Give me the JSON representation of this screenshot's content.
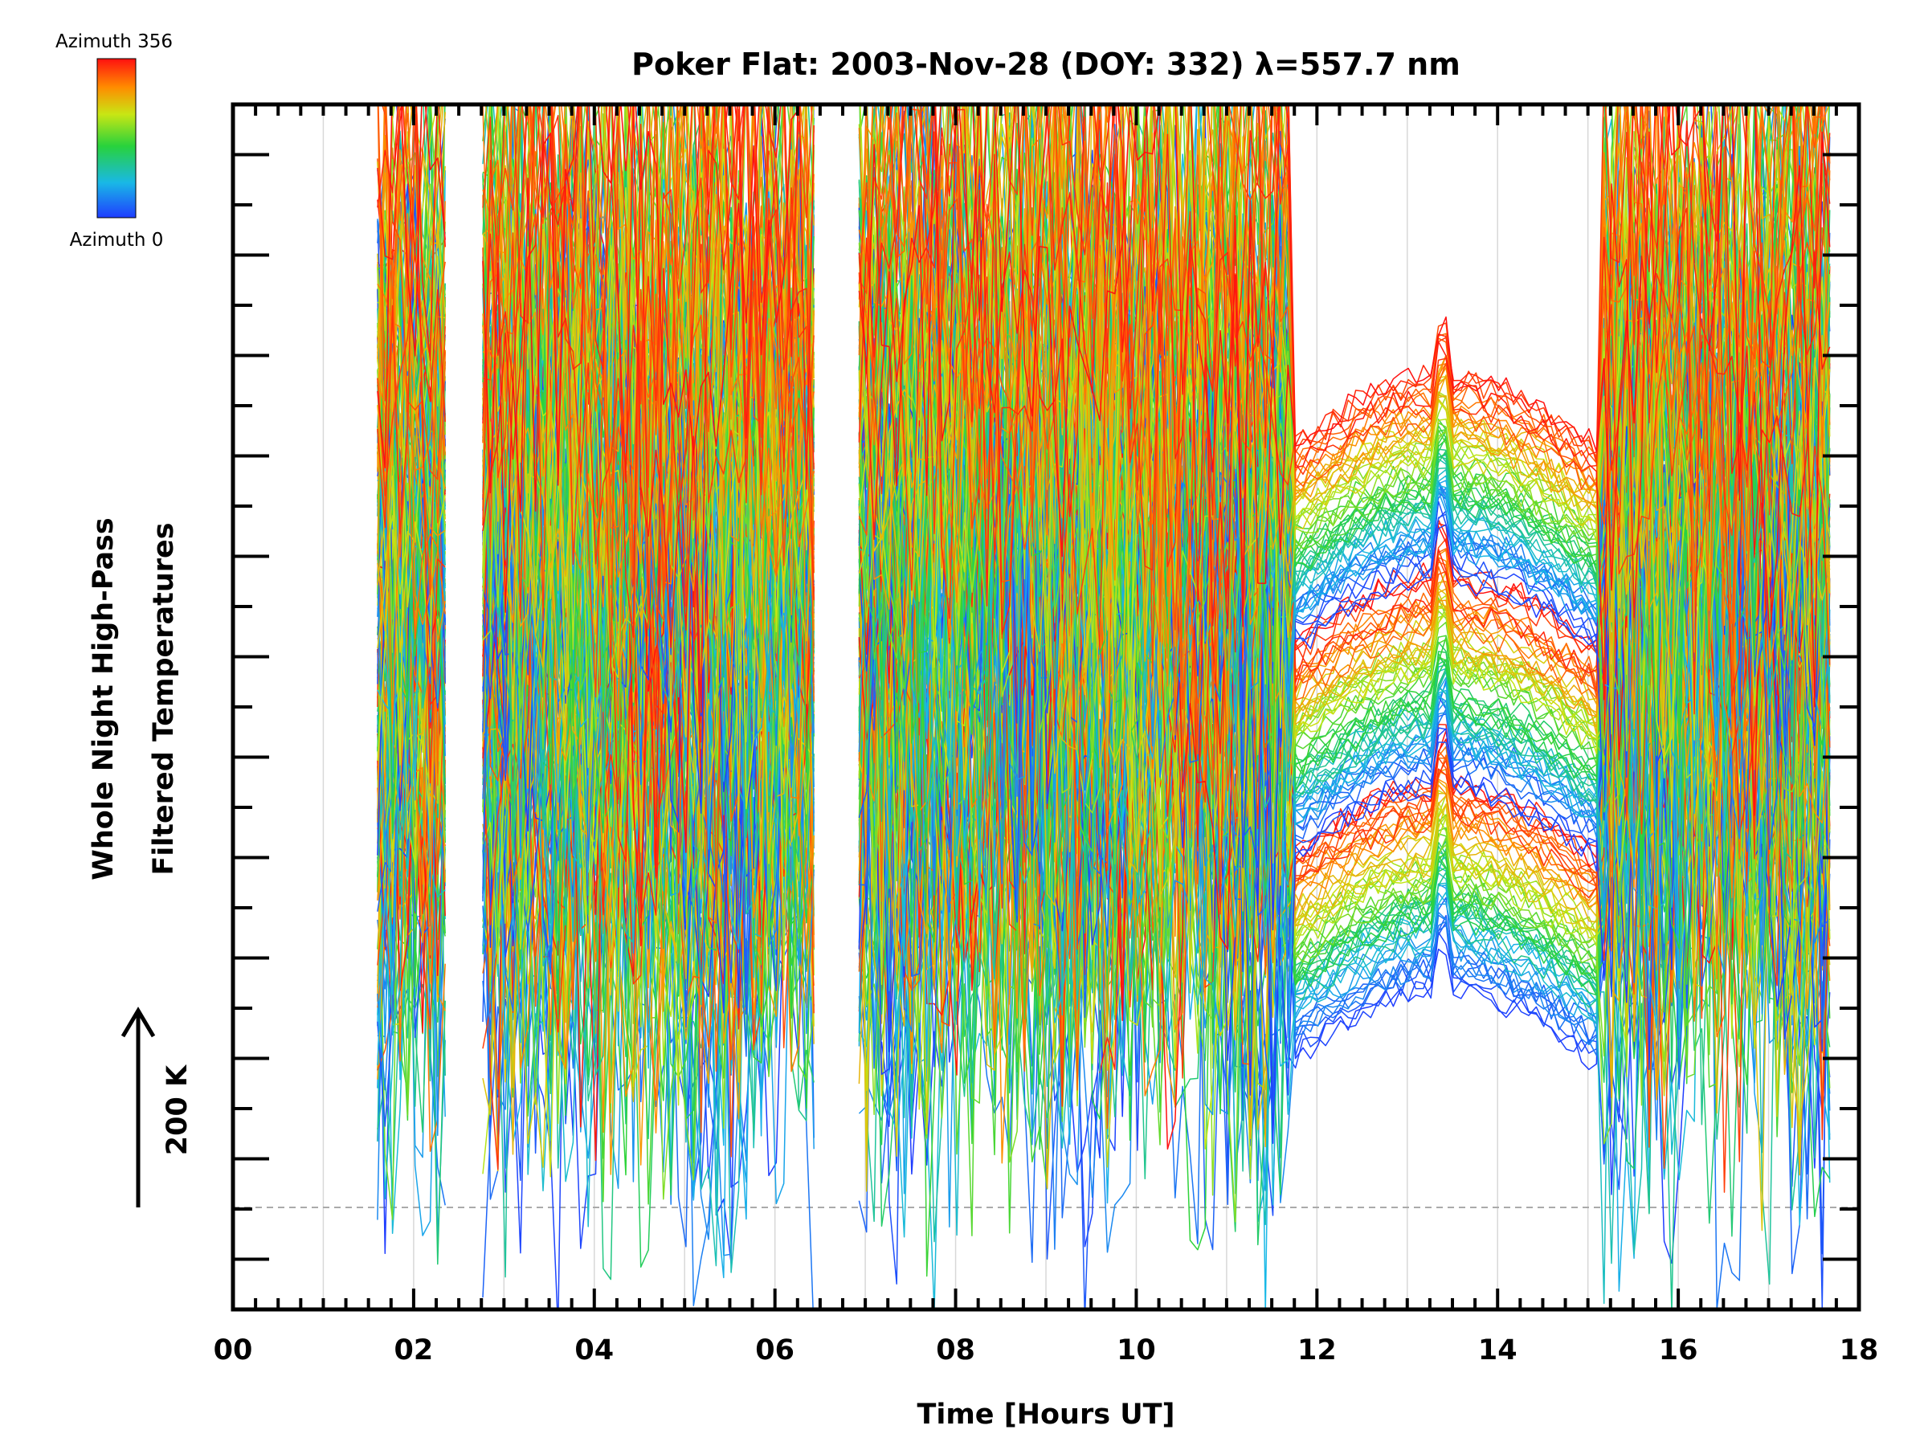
{
  "chart_data": {
    "type": "line",
    "title": "Poker Flat: 2003-Nov-28 (DOY: 332) λ=557.7 nm",
    "xlabel": "Time [Hours UT]",
    "ylabel_line1": "Whole Night High-Pass",
    "ylabel_line2": "Filtered Temperatures",
    "scale_bar_label": "200 K",
    "scale_bar_value_K": 200,
    "xlim": [
      0,
      18
    ],
    "x_tick_labels": [
      "00",
      "02",
      "04",
      "06",
      "08",
      "10",
      "12",
      "14",
      "16",
      "18"
    ],
    "x_ticks": [
      0,
      2,
      4,
      6,
      8,
      10,
      12,
      14,
      16,
      18
    ],
    "x_data_range": [
      1.6,
      17.7
    ],
    "series_count": 180,
    "colorbar": {
      "max_label": "Azimuth 356",
      "min_label": "Azimuth 0",
      "azimuth_range": [
        0,
        356
      ],
      "colormap": "rainbow (blue → cyan → green → yellow → red)",
      "colors": [
        "#1f3dff",
        "#19b8e6",
        "#28d23c",
        "#c8e614",
        "#ff8c00",
        "#ff1010"
      ]
    },
    "reference_line": "dashed gray horizontal baseline near bottom",
    "grid": "vertical light-gray lines at every hour",
    "colors": {
      "axis": "#000000",
      "grid": "#d8d8d8",
      "baseline": "#aaaaaa"
    }
  }
}
